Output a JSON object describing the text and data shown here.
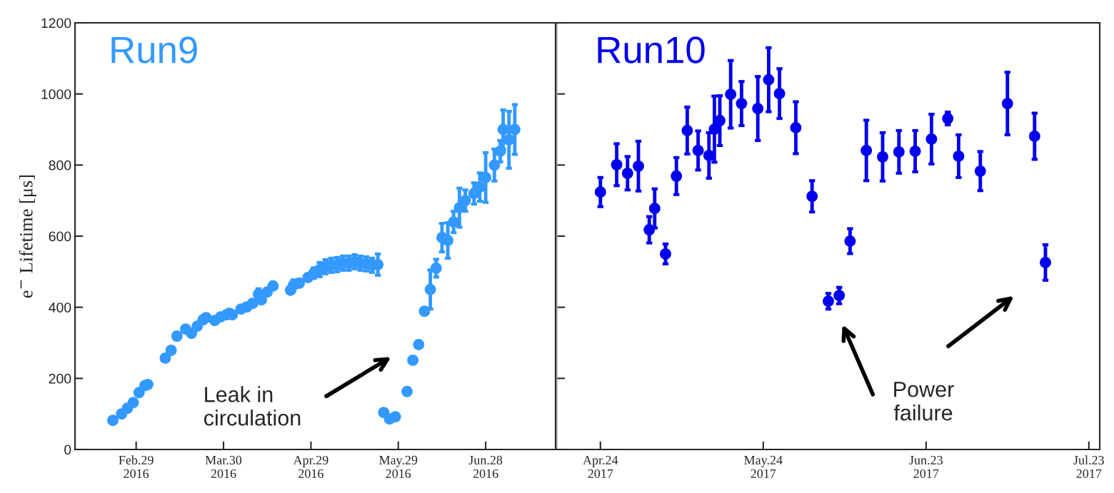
{
  "chart_data": [
    {
      "type": "scatter",
      "ylabel": "e$^{−}$ Lifetime [μs]",
      "marker": "circle",
      "grid": false,
      "legend": false,
      "xlim": [
        "2016-02-08",
        "2016-07-22"
      ],
      "xticks": [
        {
          "value": "2016-02-29",
          "label": "Feb.29\n2016"
        },
        {
          "value": "2016-03-30",
          "label": "Mar.30\n2016"
        },
        {
          "value": "2016-04-29",
          "label": "Apr.29\n2016"
        },
        {
          "value": "2016-05-29",
          "label": "May.29\n2016"
        },
        {
          "value": "2016-06-28",
          "label": "Jun.28\n2016"
        }
      ],
      "ylim": [
        0,
        1200
      ],
      "yticks": [
        0,
        200,
        400,
        600,
        800,
        1000,
        1200
      ],
      "x": [
        "2016-02-21",
        "2016-02-24",
        "2016-02-26",
        "2016-02-28",
        "2016-03-01",
        "2016-03-03",
        "2016-03-04",
        "2016-03-10",
        "2016-03-12",
        "2016-03-14",
        "2016-03-17",
        "2016-03-19",
        "2016-03-21",
        "2016-03-23",
        "2016-03-24",
        "2016-03-27",
        "2016-03-29",
        "2016-03-31",
        "2016-04-01",
        "2016-04-02",
        "2016-04-05",
        "2016-04-07",
        "2016-04-09",
        "2016-04-11",
        "2016-04-12",
        "2016-04-14",
        "2016-04-16",
        "2016-04-22",
        "2016-04-23",
        "2016-04-25",
        "2016-04-28",
        "2016-04-30",
        "2016-05-02",
        "2016-05-04",
        "2016-05-06",
        "2016-05-08",
        "2016-05-10",
        "2016-05-12",
        "2016-05-14",
        "2016-05-16",
        "2016-05-18",
        "2016-05-20",
        "2016-05-22",
        "2016-05-24",
        "2016-05-26",
        "2016-05-28",
        "2016-06-01",
        "2016-06-03",
        "2016-06-05",
        "2016-06-07",
        "2016-06-09",
        "2016-06-11",
        "2016-06-13",
        "2016-06-15",
        "2016-06-17",
        "2016-06-19",
        "2016-06-21",
        "2016-06-24",
        "2016-06-26",
        "2016-06-28",
        "2016-07-01",
        "2016-07-03",
        "2016-07-04",
        "2016-07-06",
        "2016-07-08"
      ],
      "series": [
        {
          "name": "Run9",
          "color": "#3399ff",
          "values": [
            82,
            100,
            116,
            132,
            160,
            180,
            183,
            257,
            279,
            319,
            339,
            327,
            347,
            365,
            371,
            363,
            373,
            379,
            383,
            379,
            395,
            401,
            411,
            437,
            421,
            443,
            460,
            448,
            462,
            468,
            484,
            496,
            506,
            514,
            518,
            520,
            524,
            524,
            528,
            524,
            522,
            518,
            520,
            104,
            86,
            92,
            163,
            251,
            295,
            389,
            450,
            510,
            596,
            588,
            640,
            680,
            700,
            720,
            738,
            765,
            800,
            839,
            900,
            871,
            900
          ],
          "errors": [
            null,
            null,
            null,
            null,
            null,
            null,
            null,
            null,
            null,
            null,
            null,
            null,
            null,
            null,
            null,
            null,
            null,
            null,
            null,
            null,
            null,
            null,
            null,
            15,
            null,
            null,
            null,
            null,
            15,
            null,
            null,
            15,
            20,
            20,
            20,
            20,
            20,
            20,
            20,
            20,
            20,
            20,
            30,
            null,
            null,
            null,
            null,
            null,
            null,
            10,
            55,
            25,
            40,
            50,
            30,
            55,
            30,
            30,
            40,
            70,
            45,
            30,
            55,
            80,
            70
          ]
        }
      ],
      "annotations": [
        "Leak in\ncirculation"
      ]
    },
    {
      "type": "scatter",
      "marker": "circle",
      "grid": false,
      "legend": false,
      "tick_labels": "x",
      "xlim": [
        "2017-04-16",
        "2017-07-25"
      ],
      "xticks": [
        {
          "value": "2017-04-24",
          "label": "Apr.24\n2017"
        },
        {
          "value": "2017-05-24",
          "label": "May.24\n2017"
        },
        {
          "value": "2017-06-23",
          "label": "Jun.23\n2017"
        },
        {
          "value": "2017-07-23",
          "label": "Jul.23\n2017"
        }
      ],
      "ylim": [
        0,
        1200
      ],
      "yticks": [
        0,
        200,
        400,
        600,
        800,
        1000,
        1200
      ],
      "x": [
        "2017-04-24",
        "2017-04-27",
        "2017-04-29",
        "2017-05-01",
        "2017-05-03",
        "2017-05-04",
        "2017-05-06",
        "2017-05-08",
        "2017-05-10",
        "2017-05-12",
        "2017-05-14",
        "2017-05-15",
        "2017-05-16",
        "2017-05-18",
        "2017-05-20",
        "2017-05-23",
        "2017-05-25",
        "2017-05-27",
        "2017-05-30",
        "2017-06-02",
        "2017-06-05",
        "2017-06-07",
        "2017-06-09",
        "2017-06-12",
        "2017-06-15",
        "2017-06-18",
        "2017-06-21",
        "2017-06-24",
        "2017-06-27",
        "2017-06-29",
        "2017-07-03",
        "2017-07-08",
        "2017-07-13",
        "2017-07-15"
      ],
      "series": [
        {
          "name": "Run10",
          "color": "#0000ee",
          "values": [
            724,
            801,
            777,
            797,
            618,
            678,
            550,
            769,
            897,
            841,
            827,
            901,
            925,
            999,
            973,
            959,
            1040,
            1001,
            905,
            712,
            417,
            433,
            586,
            841,
            823,
            837,
            839,
            873,
            931,
            825,
            783,
            973,
            881,
            526
          ],
          "errors": [
            41,
            59,
            47,
            70,
            37,
            55,
            28,
            52,
            66,
            55,
            64,
            93,
            70,
            95,
            62,
            90,
            90,
            70,
            73,
            44,
            22,
            23,
            35,
            85,
            68,
            60,
            58,
            70,
            18,
            60,
            55,
            88,
            65,
            50
          ]
        }
      ],
      "annotations": [
        "Power\nfailure"
      ]
    }
  ]
}
